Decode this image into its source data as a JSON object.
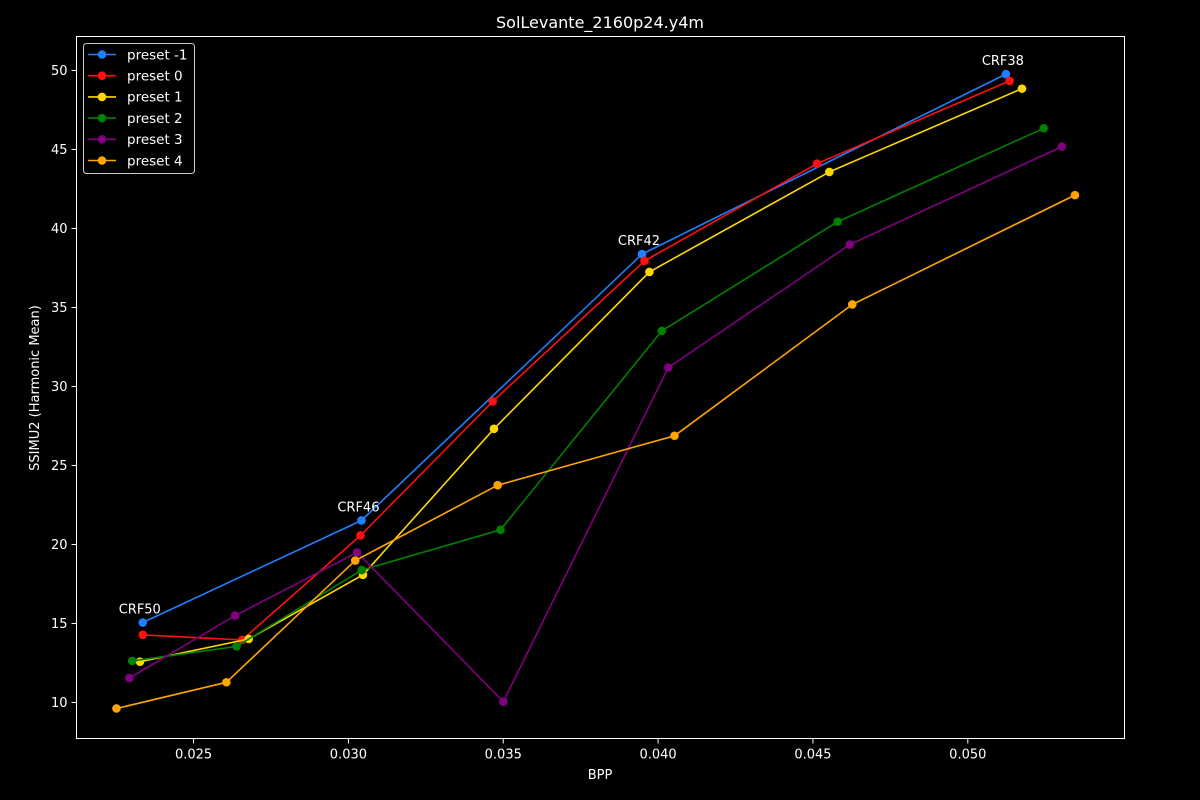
{
  "chart_data": {
    "type": "line",
    "title": "SolLevante_2160p24.y4m",
    "xlabel": "BPP",
    "ylabel": "SSIMU2 (Harmonic Mean)",
    "xlim": [
      0.02122,
      0.05506
    ],
    "ylim": [
      7.72,
      52.15
    ],
    "xticks": [
      0.025,
      0.03,
      0.035,
      0.04,
      0.045,
      0.05
    ],
    "xtick_labels": [
      "0.025",
      "0.030",
      "0.035",
      "0.040",
      "0.045",
      "0.050"
    ],
    "yticks": [
      10,
      15,
      20,
      25,
      30,
      35,
      40,
      45,
      50
    ],
    "ytick_labels": [
      "10",
      "15",
      "20",
      "25",
      "30",
      "35",
      "40",
      "45",
      "50"
    ],
    "grid": false,
    "legend_position": "top-left",
    "background": "#000000",
    "series": [
      {
        "name": "preset -1",
        "color": "#1f7fff",
        "x": [
          0.02336,
          0.03042,
          0.03948,
          0.05123
        ],
        "y": [
          15.06,
          21.52,
          38.38,
          49.77
        ]
      },
      {
        "name": "preset 0",
        "color": "#ff1010",
        "x": [
          0.02336,
          0.02657,
          0.03039,
          0.03466,
          0.03956,
          0.04513,
          0.05135
        ],
        "y": [
          14.28,
          13.96,
          20.57,
          29.05,
          37.95,
          44.1,
          49.34
        ]
      },
      {
        "name": "preset 1",
        "color": "#ffd700",
        "x": [
          0.02327,
          0.02678,
          0.03047,
          0.0347,
          0.03972,
          0.04553,
          0.05175
        ],
        "y": [
          12.58,
          14.02,
          18.08,
          27.32,
          37.25,
          43.58,
          48.85
        ]
      },
      {
        "name": "preset 2",
        "color": "#008000",
        "x": [
          0.02302,
          0.02639,
          0.03043,
          0.03491,
          0.04012,
          0.0458,
          0.05245
        ],
        "y": [
          12.63,
          13.55,
          18.38,
          20.93,
          33.52,
          40.43,
          46.34
        ]
      },
      {
        "name": "preset 3",
        "color": "#800080",
        "x": [
          0.02293,
          0.02634,
          0.03028,
          0.035,
          0.04033,
          0.04619,
          0.05304
        ],
        "y": [
          11.55,
          15.5,
          19.5,
          10.05,
          31.2,
          38.98,
          45.18
        ]
      },
      {
        "name": "preset 4",
        "color": "#ffa500",
        "x": [
          0.02251,
          0.02606,
          0.03022,
          0.03482,
          0.04053,
          0.04627,
          0.05346
        ],
        "y": [
          9.62,
          11.28,
          18.98,
          23.75,
          26.88,
          35.19,
          42.11
        ]
      }
    ],
    "annotations": [
      {
        "text": "CRF50",
        "x": 0.02336,
        "y": 15.06
      },
      {
        "text": "CRF46",
        "x": 0.03042,
        "y": 21.52
      },
      {
        "text": "CRF42",
        "x": 0.03948,
        "y": 38.38
      },
      {
        "text": "CRF38",
        "x": 0.05123,
        "y": 49.77
      }
    ]
  }
}
